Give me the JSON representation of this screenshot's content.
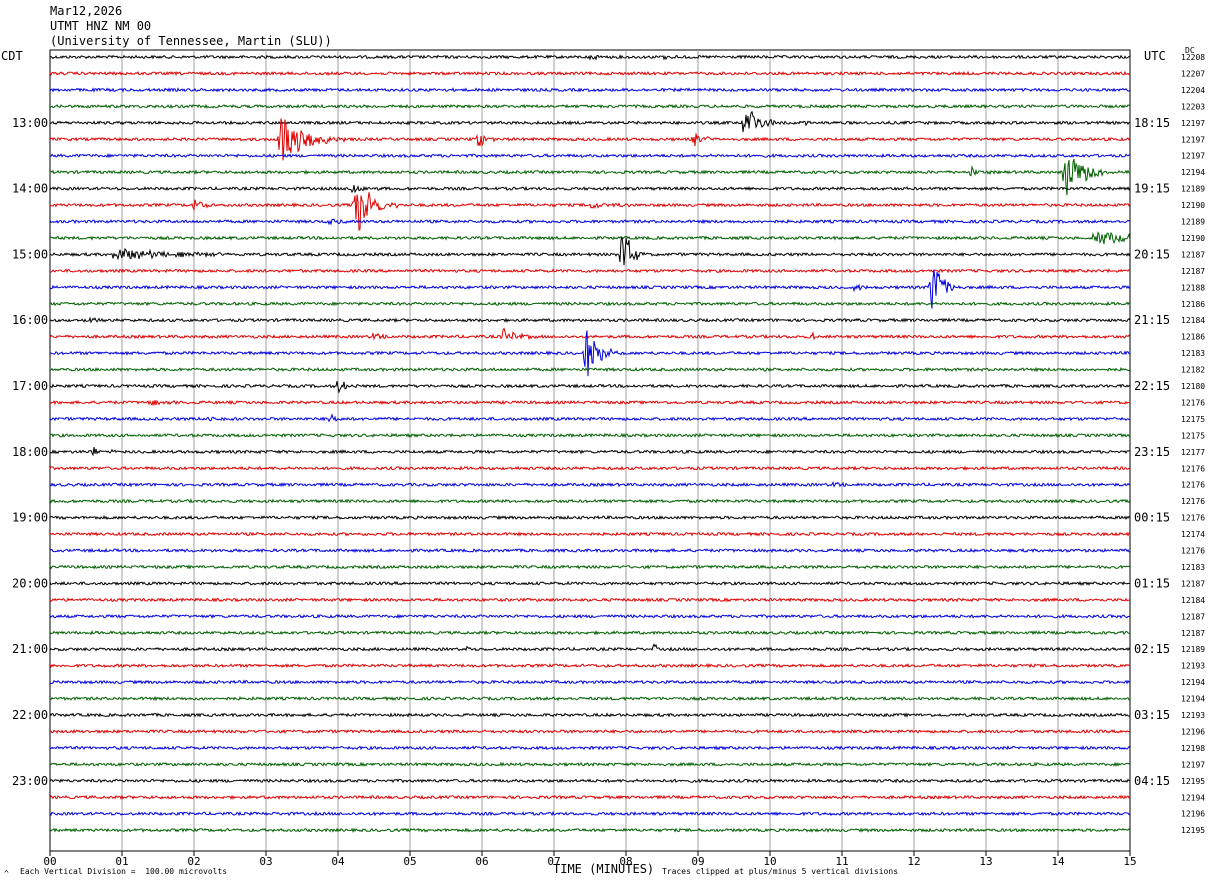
{
  "header": {
    "date": "Mar12,2026",
    "station": "UTMT HNZ NM 00",
    "institution": "(University of Tennessee, Martin (SLU))"
  },
  "left_tz": "CDT",
  "right_tz": "UTC",
  "dc_label": "DC",
  "footer": {
    "scale_note": "Each Vertical Division =  100.00 microvolts",
    "clip_note": "Traces clipped at plus/minus 5 vertical divisions",
    "corner_mark": "^"
  },
  "chart_data": {
    "type": "line",
    "xlabel": "TIME (MINUTES)",
    "xlim": [
      0,
      15
    ],
    "x_ticks": [
      "00",
      "01",
      "02",
      "03",
      "04",
      "05",
      "06",
      "07",
      "08",
      "09",
      "10",
      "11",
      "12",
      "13",
      "14",
      "15"
    ],
    "trace_colors": [
      "#000000",
      "#e00000",
      "#0000e0",
      "#006000"
    ],
    "left_time_labels": [
      {
        "row": 4,
        "label": "13:00"
      },
      {
        "row": 8,
        "label": "14:00"
      },
      {
        "row": 12,
        "label": "15:00"
      },
      {
        "row": 16,
        "label": "16:00"
      },
      {
        "row": 20,
        "label": "17:00"
      },
      {
        "row": 24,
        "label": "18:00"
      },
      {
        "row": 28,
        "label": "19:00"
      },
      {
        "row": 32,
        "label": "20:00"
      },
      {
        "row": 36,
        "label": "21:00"
      },
      {
        "row": 40,
        "label": "22:00"
      },
      {
        "row": 44,
        "label": "23:00"
      }
    ],
    "right_time_labels": [
      {
        "row": 4,
        "label": "18:15"
      },
      {
        "row": 8,
        "label": "19:15"
      },
      {
        "row": 12,
        "label": "20:15"
      },
      {
        "row": 16,
        "label": "21:15"
      },
      {
        "row": 20,
        "label": "22:15"
      },
      {
        "row": 24,
        "label": "23:15"
      },
      {
        "row": 28,
        "label": "00:15"
      },
      {
        "row": 32,
        "label": "01:15"
      },
      {
        "row": 36,
        "label": "02:15"
      },
      {
        "row": 40,
        "label": "03:15"
      },
      {
        "row": 44,
        "label": "04:15"
      }
    ],
    "dc_offsets": [
      "12208",
      "12207",
      "12204",
      "12203",
      "12197",
      "12197",
      "12197",
      "12194",
      "12189",
      "12190",
      "12189",
      "12190",
      "12187",
      "12187",
      "12188",
      "12186",
      "12184",
      "12186",
      "12183",
      "12182",
      "12180",
      "12176",
      "12175",
      "12175",
      "12177",
      "12176",
      "12176",
      "12176",
      "12176",
      "12174",
      "12176",
      "12183",
      "12187",
      "12184",
      "12187",
      "12187",
      "12189",
      "12193",
      "12194",
      "12194",
      "12193",
      "12196",
      "12198",
      "12197",
      "12195",
      "12194",
      "12196",
      "12195"
    ],
    "events": [
      {
        "row": 0,
        "minute": 7.5,
        "amp": 3,
        "dur": 0.3
      },
      {
        "row": 0,
        "minute": 8.5,
        "amp": 3,
        "dur": 0.3
      },
      {
        "row": 4,
        "minute": 9.65,
        "amp": 22,
        "dur": 0.5
      },
      {
        "row": 4,
        "minute": 10.5,
        "amp": 3,
        "dur": 0.2
      },
      {
        "row": 5,
        "minute": 3.2,
        "amp": 28,
        "dur": 0.9
      },
      {
        "row": 5,
        "minute": 5.95,
        "amp": 10,
        "dur": 0.3
      },
      {
        "row": 5,
        "minute": 8.95,
        "amp": 8,
        "dur": 0.4
      },
      {
        "row": 7,
        "minute": 14.1,
        "amp": 26,
        "dur": 0.7
      },
      {
        "row": 7,
        "minute": 12.8,
        "amp": 5,
        "dur": 0.3
      },
      {
        "row": 8,
        "minute": 4.2,
        "amp": 6,
        "dur": 0.4
      },
      {
        "row": 9,
        "minute": 4.25,
        "amp": 32,
        "dur": 0.6
      },
      {
        "row": 9,
        "minute": 2.0,
        "amp": 6,
        "dur": 0.4
      },
      {
        "row": 9,
        "minute": 7.5,
        "amp": 4,
        "dur": 0.6
      },
      {
        "row": 10,
        "minute": 3.9,
        "amp": 5,
        "dur": 0.3
      },
      {
        "row": 11,
        "minute": 14.5,
        "amp": 9,
        "dur": 1.2
      },
      {
        "row": 12,
        "minute": 0.9,
        "amp": 7,
        "dur": 1.8
      },
      {
        "row": 12,
        "minute": 7.95,
        "amp": 34,
        "dur": 0.3
      },
      {
        "row": 14,
        "minute": 12.25,
        "amp": 32,
        "dur": 0.4
      },
      {
        "row": 14,
        "minute": 11.15,
        "amp": 8,
        "dur": 0.2
      },
      {
        "row": 16,
        "minute": 0.5,
        "amp": 3,
        "dur": 0.3
      },
      {
        "row": 17,
        "minute": 6.3,
        "amp": 8,
        "dur": 0.5
      },
      {
        "row": 17,
        "minute": 4.5,
        "amp": 4,
        "dur": 0.4
      },
      {
        "row": 17,
        "minute": 10.6,
        "amp": 4,
        "dur": 0.2
      },
      {
        "row": 18,
        "minute": 7.45,
        "amp": 26,
        "dur": 0.5
      },
      {
        "row": 20,
        "minute": 4.0,
        "amp": 7,
        "dur": 0.4
      },
      {
        "row": 21,
        "minute": 1.4,
        "amp": 4,
        "dur": 0.4
      },
      {
        "row": 22,
        "minute": 2.2,
        "amp": 4,
        "dur": 0.3
      },
      {
        "row": 22,
        "minute": 3.9,
        "amp": 5,
        "dur": 0.2
      },
      {
        "row": 24,
        "minute": 0.6,
        "amp": 4,
        "dur": 0.5
      },
      {
        "row": 26,
        "minute": 10.9,
        "amp": 3,
        "dur": 0.3
      },
      {
        "row": 36,
        "minute": 8.4,
        "amp": 7,
        "dur": 0.08
      },
      {
        "row": 36,
        "minute": 5.8,
        "amp": 3,
        "dur": 0.1
      },
      {
        "row": 45,
        "minute": 2.85,
        "amp": 4,
        "dur": 0.1
      }
    ]
  }
}
